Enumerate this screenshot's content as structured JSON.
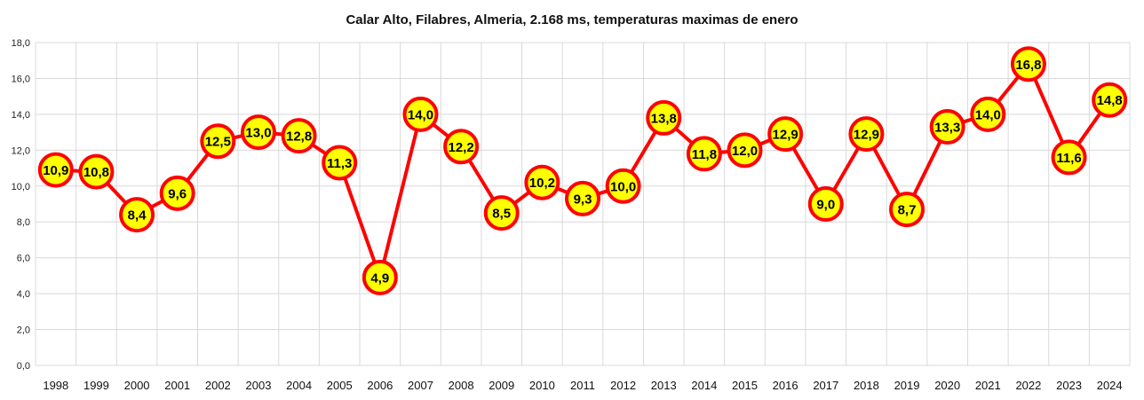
{
  "chart_data": {
    "type": "line",
    "title": "Calar Alto, Filabres, Almeria, 2.168 ms, temperaturas maximas de enero",
    "xlabel": "",
    "ylabel": "",
    "ylim": [
      0,
      18
    ],
    "yticks": [
      "0,0",
      "2,0",
      "4,0",
      "6,0",
      "8,0",
      "10,0",
      "12,0",
      "14,0",
      "16,0",
      "18,0"
    ],
    "grid": true,
    "legend": "none",
    "categories": [
      "1998",
      "1999",
      "2000",
      "2001",
      "2002",
      "2003",
      "2004",
      "2005",
      "2006",
      "2007",
      "2008",
      "2009",
      "2010",
      "2011",
      "2012",
      "2013",
      "2014",
      "2015",
      "2016",
      "2017",
      "2018",
      "2019",
      "2020",
      "2021",
      "2022",
      "2023",
      "2024"
    ],
    "series": [
      {
        "values": [
          10.9,
          10.8,
          8.4,
          9.6,
          12.5,
          13.0,
          12.8,
          11.3,
          4.9,
          14.0,
          12.2,
          8.5,
          10.2,
          9.3,
          10.0,
          13.8,
          11.8,
          12.0,
          12.9,
          9.0,
          12.9,
          8.7,
          13.3,
          14.0,
          16.8,
          11.6,
          14.8
        ],
        "labels": [
          "10,9",
          "10,8",
          "8,4",
          "9,6",
          "12,5",
          "13,0",
          "12,8",
          "11,3",
          "4,9",
          "14,0",
          "12,2",
          "8,5",
          "10,2",
          "9,3",
          "10,0",
          "13,8",
          "11,8",
          "12,0",
          "12,9",
          "9,0",
          "12,9",
          "8,7",
          "13,3",
          "14,0",
          "16,8",
          "11,6",
          "14,8"
        ],
        "line_color": "#ff0000",
        "marker_fill": "#ffff00",
        "marker_stroke": "#ff0000"
      }
    ]
  }
}
